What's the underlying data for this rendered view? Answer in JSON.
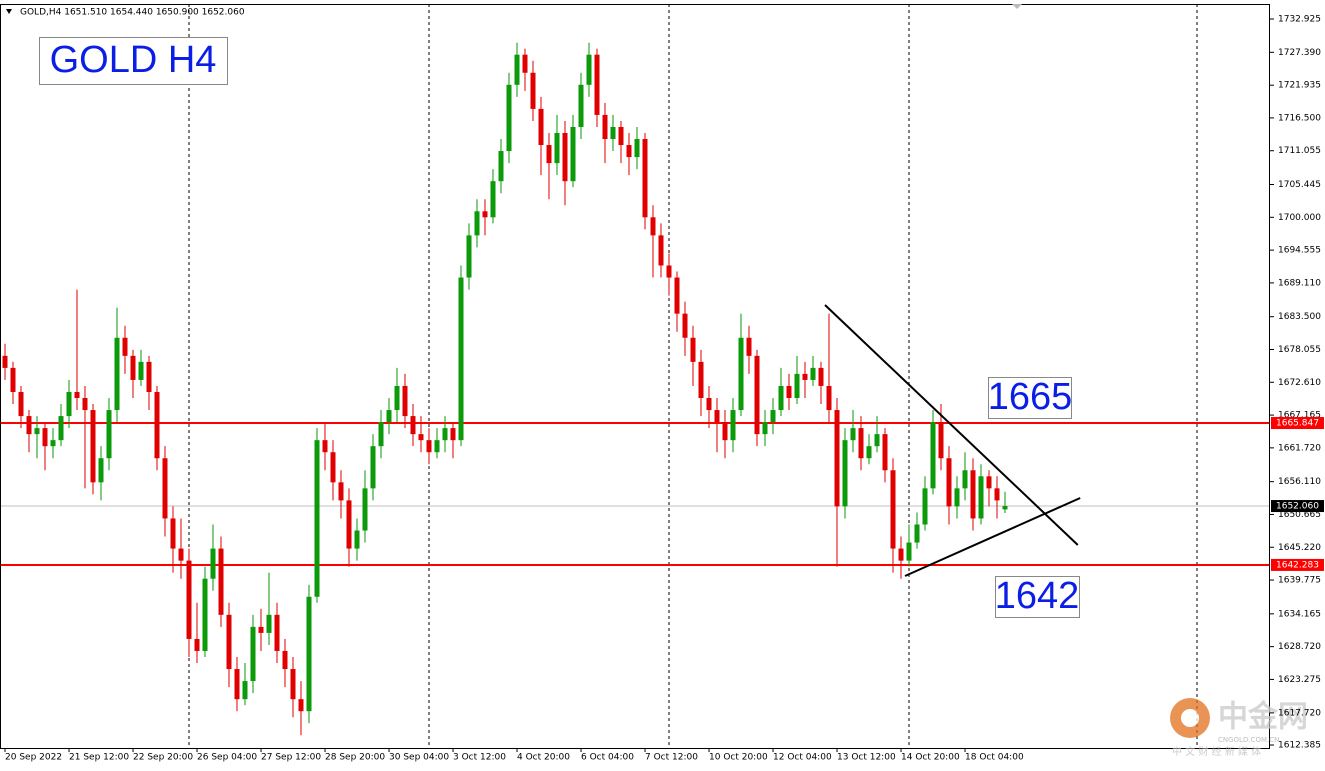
{
  "chart_data": {
    "type": "candlestick",
    "header": "GOLD,H4  1651.510 1654.440 1650.900 1652.060",
    "up_color": "#0a9a0a",
    "down_color": "#e00000",
    "xlim": [
      -0.625,
      158.125
    ],
    "ylim": [
      1611.89,
      1735.415
    ],
    "yticks": [
      1732.925,
      {
        "value": 1727.39,
        "label": "1727.390"
      },
      1721.935,
      {
        "value": 1716.5,
        "label": "1716.500"
      },
      1711.055,
      1705.445,
      {
        "value": 1700,
        "label": "1700.000"
      },
      1694.555,
      {
        "value": 1689.11,
        "label": "1689.110"
      },
      {
        "value": 1683.5,
        "label": "1683.500"
      },
      1678.055,
      {
        "value": 1672.61,
        "label": "1672.610"
      },
      1667.165,
      {
        "value": 1661.72,
        "label": "1661.720"
      },
      {
        "value": 1656.11,
        "label": "1656.110"
      },
      1650.665,
      {
        "value": 1645.22,
        "label": "1645.220"
      },
      1639.775,
      1634.165,
      {
        "value": 1628.72,
        "label": "1628.720"
      },
      1623.275,
      {
        "value": 1617.72,
        "label": "1617.720"
      },
      1612.385
    ],
    "xticks": [
      {
        "value": 0,
        "label": "20 Sep 2022"
      },
      {
        "value": 8,
        "label": "21 Sep 12:00"
      },
      {
        "value": 16,
        "label": "22 Sep 20:00"
      },
      {
        "value": 24,
        "label": "26 Sep 04:00"
      },
      {
        "value": 32,
        "label": "27 Sep 12:00"
      },
      {
        "value": 40,
        "label": "28 Sep 20:00"
      },
      {
        "value": 48,
        "label": "30 Sep 04:00"
      },
      {
        "value": 56,
        "label": "3 Oct 12:00"
      },
      {
        "value": 64,
        "label": "4 Oct 20:00"
      },
      {
        "value": 72,
        "label": "6 Oct 04:00"
      },
      {
        "value": 80,
        "label": "7 Oct 12:00"
      },
      {
        "value": 88,
        "label": "10 Oct 20:00"
      },
      {
        "value": 96,
        "label": "12 Oct 04:00"
      },
      {
        "value": 104,
        "label": "13 Oct 12:00"
      },
      {
        "value": 112,
        "label": "14 Oct 20:00"
      },
      {
        "value": 120,
        "label": "18 Oct 04:00"
      }
    ],
    "separators": [
      23,
      53,
      83,
      113,
      149
    ],
    "candles": [
      [
        1677,
        1679,
        1673,
        1675
      ],
      [
        1675,
        1676,
        1669,
        1671
      ],
      [
        1671,
        1672,
        1665,
        1667
      ],
      [
        1667,
        1668,
        1661,
        1664
      ],
      [
        1664,
        1667,
        1660,
        1665
      ],
      [
        1665,
        1666,
        1658,
        1662
      ],
      [
        1662,
        1665,
        1660,
        1663
      ],
      [
        1663,
        1669,
        1662,
        1667
      ],
      [
        1667,
        1673,
        1665,
        1671
      ],
      [
        1671,
        1688,
        1668,
        1670
      ],
      [
        1670,
        1672,
        1655,
        1668
      ],
      [
        1668,
        1669,
        1654,
        1656
      ],
      [
        1656,
        1662,
        1653,
        1660
      ],
      [
        1660,
        1670,
        1658,
        1668
      ],
      [
        1668,
        1685,
        1666,
        1680
      ],
      [
        1680,
        1682,
        1674,
        1677
      ],
      [
        1677,
        1678,
        1670,
        1673
      ],
      [
        1673,
        1678,
        1672,
        1676
      ],
      [
        1676,
        1677,
        1668,
        1671
      ],
      [
        1671,
        1672,
        1658,
        1660
      ],
      [
        1660,
        1662,
        1647,
        1650
      ],
      [
        1650,
        1652,
        1641,
        1645
      ],
      [
        1645,
        1650,
        1640,
        1643
      ],
      [
        1643,
        1645,
        1627,
        1630
      ],
      [
        1630,
        1636,
        1626,
        1628
      ],
      [
        1628,
        1642,
        1627,
        1640
      ],
      [
        1640,
        1649,
        1638,
        1645
      ],
      [
        1645,
        1647,
        1632,
        1634
      ],
      [
        1634,
        1636,
        1622,
        1625
      ],
      [
        1625,
        1627,
        1618,
        1620
      ],
      [
        1620,
        1626,
        1619,
        1623
      ],
      [
        1623,
        1634,
        1621,
        1632
      ],
      [
        1632,
        1635,
        1628,
        1631
      ],
      [
        1631,
        1641,
        1629,
        1634
      ],
      [
        1634,
        1636,
        1626,
        1628
      ],
      [
        1628,
        1630,
        1622,
        1625
      ],
      [
        1625,
        1627,
        1617,
        1620
      ],
      [
        1620,
        1623,
        1614,
        1618
      ],
      [
        1618,
        1639,
        1616,
        1637
      ],
      [
        1637,
        1665,
        1636,
        1663
      ],
      [
        1663,
        1666,
        1658,
        1661
      ],
      [
        1661,
        1663,
        1653,
        1656
      ],
      [
        1656,
        1658,
        1650,
        1653
      ],
      [
        1653,
        1655,
        1642,
        1645
      ],
      [
        1645,
        1650,
        1643,
        1648
      ],
      [
        1648,
        1658,
        1646,
        1655
      ],
      [
        1655,
        1664,
        1653,
        1662
      ],
      [
        1662,
        1668,
        1660,
        1666
      ],
      [
        1666,
        1670,
        1664,
        1668
      ],
      [
        1668,
        1675,
        1666,
        1672
      ],
      [
        1672,
        1674,
        1665,
        1667
      ],
      [
        1667,
        1669,
        1662,
        1664
      ],
      [
        1664,
        1667,
        1661,
        1663
      ],
      [
        1663,
        1665,
        1659,
        1661
      ],
      [
        1661,
        1665,
        1660,
        1663
      ],
      [
        1663,
        1667,
        1661,
        1665
      ],
      [
        1665,
        1666,
        1660,
        1663
      ],
      [
        1663,
        1692,
        1662,
        1690
      ],
      [
        1690,
        1699,
        1688,
        1697
      ],
      [
        1697,
        1703,
        1695,
        1701
      ],
      [
        1701,
        1703,
        1697,
        1700
      ],
      [
        1700,
        1708,
        1699,
        1706
      ],
      [
        1706,
        1713,
        1704,
        1711
      ],
      [
        1711,
        1724,
        1709,
        1722
      ],
      [
        1722,
        1729,
        1720,
        1727
      ],
      [
        1727,
        1728,
        1721,
        1724
      ],
      [
        1724,
        1726,
        1716,
        1718
      ],
      [
        1718,
        1720,
        1707,
        1712
      ],
      [
        1712,
        1714,
        1703,
        1709
      ],
      [
        1709,
        1717,
        1707,
        1714
      ],
      [
        1714,
        1716,
        1702,
        1706
      ],
      [
        1706,
        1717,
        1705,
        1715
      ],
      [
        1715,
        1724,
        1713,
        1722
      ],
      [
        1722,
        1729,
        1720,
        1727
      ],
      [
        1727,
        1728,
        1715,
        1717
      ],
      [
        1717,
        1719,
        1709,
        1713
      ],
      [
        1713,
        1717,
        1711,
        1715
      ],
      [
        1715,
        1716,
        1709,
        1712
      ],
      [
        1712,
        1714,
        1707,
        1710
      ],
      [
        1710,
        1715,
        1708,
        1713
      ],
      [
        1713,
        1714,
        1698,
        1700
      ],
      [
        1700,
        1702,
        1690,
        1697
      ],
      [
        1697,
        1699,
        1690,
        1692
      ],
      [
        1692,
        1694,
        1687,
        1690
      ],
      [
        1690,
        1691,
        1681,
        1684
      ],
      [
        1684,
        1686,
        1677,
        1680
      ],
      [
        1680,
        1682,
        1672,
        1676
      ],
      [
        1676,
        1678,
        1667,
        1670
      ],
      [
        1670,
        1672,
        1665,
        1668
      ],
      [
        1668,
        1670,
        1661,
        1666
      ],
      [
        1666,
        1668,
        1660,
        1663
      ],
      [
        1663,
        1670,
        1661,
        1668
      ],
      [
        1668,
        1684,
        1667,
        1680
      ],
      [
        1680,
        1682,
        1674,
        1677
      ],
      [
        1677,
        1678,
        1662,
        1664
      ],
      [
        1664,
        1668,
        1662,
        1666
      ],
      [
        1666,
        1670,
        1664,
        1668
      ],
      [
        1668,
        1675,
        1667,
        1672
      ],
      [
        1672,
        1674,
        1668,
        1670
      ],
      [
        1670,
        1677,
        1669,
        1674
      ],
      [
        1674,
        1676,
        1670,
        1673
      ],
      [
        1673,
        1677,
        1672,
        1675
      ],
      [
        1675,
        1676,
        1669,
        1672
      ],
      [
        1672,
        1684,
        1666,
        1668
      ],
      [
        1668,
        1670,
        1642,
        1652
      ],
      [
        1652,
        1665,
        1650,
        1663
      ],
      [
        1663,
        1668,
        1661,
        1665
      ],
      [
        1665,
        1667,
        1658,
        1660
      ],
      [
        1660,
        1664,
        1659,
        1662
      ],
      [
        1662,
        1667,
        1661,
        1664
      ],
      [
        1664,
        1665,
        1656,
        1658
      ],
      [
        1658,
        1660,
        1641,
        1645
      ],
      [
        1645,
        1647,
        1640,
        1643
      ],
      [
        1643,
        1649,
        1642,
        1646
      ],
      [
        1646,
        1651,
        1645,
        1649
      ],
      [
        1649,
        1657,
        1648,
        1655
      ],
      [
        1655,
        1668,
        1654,
        1666
      ],
      [
        1666,
        1669,
        1658,
        1660
      ],
      [
        1660,
        1662,
        1649,
        1652
      ],
      [
        1652,
        1657,
        1650,
        1655
      ],
      [
        1655,
        1661,
        1653,
        1658
      ],
      [
        1658,
        1660,
        1648,
        1650
      ],
      [
        1650,
        1659,
        1649,
        1657
      ],
      [
        1657,
        1658,
        1652,
        1655
      ],
      [
        1655,
        1657,
        1650,
        1653
      ],
      [
        1651.51,
        1654.44,
        1650.9,
        1652.06
      ]
    ],
    "hlines": [
      {
        "value": 1665.847,
        "label": "1665.847",
        "color": "#ff0000"
      },
      {
        "value": 1642.283,
        "label": "1642.283",
        "color": "#ff0000"
      }
    ],
    "current_price": {
      "value": 1652.06,
      "label": "1652.060"
    },
    "trendlines": [
      {
        "x": [
          102.5,
          134.1
        ],
        "y": [
          1685.44,
          1645.6
        ]
      },
      {
        "x": [
          112.5,
          134.4
        ],
        "y": [
          1640.45,
          1653.4
        ]
      }
    ],
    "annotations": [
      "GOLD H4",
      "1665",
      "1642"
    ],
    "watermark": {
      "brand": "中金网",
      "domain": "CNGOLD.COM.CN",
      "tagline": "中 文 财 经 新 媒 体"
    }
  }
}
